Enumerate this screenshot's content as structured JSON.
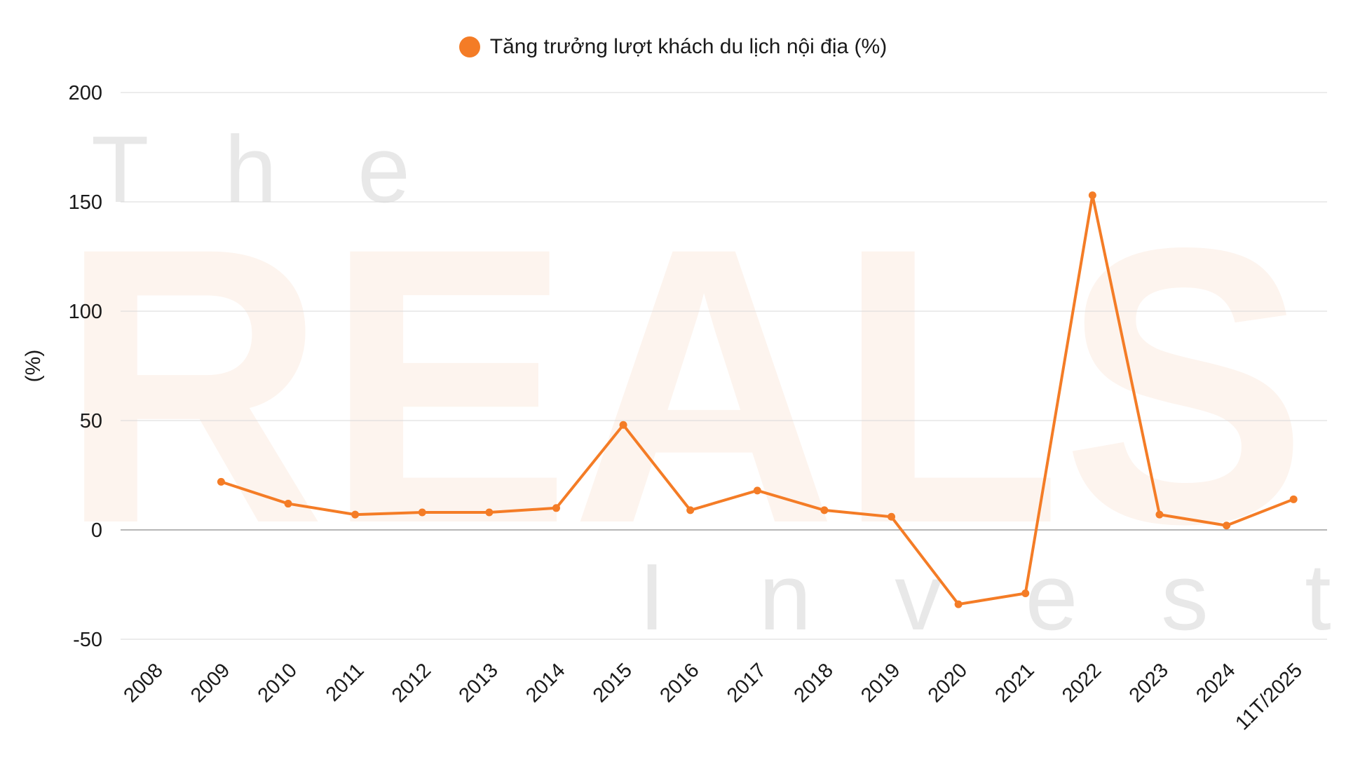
{
  "colors": {
    "series": "#f47c26",
    "grid": "#d9d9d9",
    "zero_line": "#9e9e9e",
    "watermark_gray": "#e8e8e8",
    "watermark_peach": "#fdf4ee",
    "text": "#1a1a1a"
  },
  "watermark": {
    "line1": "The",
    "line2": "REALS",
    "line3": "Invest"
  },
  "chart_data": {
    "type": "line",
    "title": "",
    "xlabel": "",
    "ylabel": "(%)",
    "ylim": [
      -50,
      200
    ],
    "yticks": [
      -50,
      0,
      50,
      100,
      150,
      200
    ],
    "grid": true,
    "legend_position": "top-center",
    "categories": [
      "2008",
      "2009",
      "2010",
      "2011",
      "2012",
      "2013",
      "2014",
      "2015",
      "2016",
      "2017",
      "2018",
      "2019",
      "2020",
      "2021",
      "2022",
      "2023",
      "2024",
      "11T/2025"
    ],
    "series": [
      {
        "name": "Tăng trưởng lượt khách du lịch nội địa (%)",
        "values": [
          null,
          22,
          12,
          7,
          8,
          8,
          10,
          48,
          9,
          18,
          9,
          6,
          -34,
          -29,
          153,
          7,
          2,
          14
        ]
      }
    ]
  }
}
